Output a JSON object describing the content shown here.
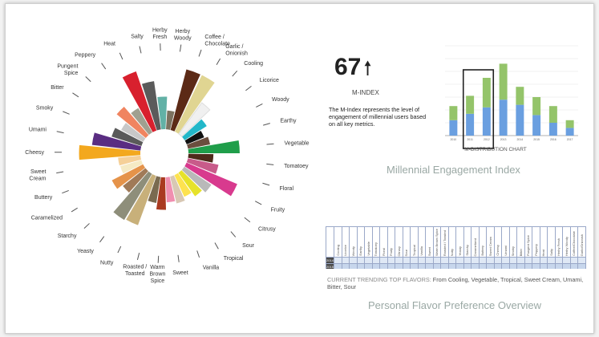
{
  "flavor_wheel": {
    "labels": [
      "Heat",
      "Salty",
      "Herby Fresh",
      "Herby Woody",
      "Coffee / Chocolate",
      "Garlic / Onionish",
      "Cooling",
      "Licorice",
      "Woody",
      "Earthy",
      "Vegetable",
      "Tomatoey",
      "Floral",
      "Fruity",
      "Citrusy",
      "Sour",
      "Tropical",
      "Vanilla",
      "Sweet",
      "Warm Brown Spice",
      "Roasted / Toasted",
      "Nutty",
      "Yeasty",
      "Starchy",
      "Caramelized",
      "Buttery",
      "Sweet Cream",
      "Cheesy",
      "Umami",
      "Smoky",
      "Bitter",
      "Pungent Spice",
      "Peppery"
    ],
    "values": [
      1.0,
      0.78,
      0.52,
      0.3,
      1.0,
      1.0,
      0.62,
      0.42,
      0.3,
      0.36,
      0.82,
      0.4,
      0.5,
      0.88,
      0.52,
      0.46,
      0.38,
      0.44,
      0.4,
      0.52,
      0.42,
      0.84,
      0.86,
      0.46,
      0.56,
      0.35,
      0.36,
      0.98,
      0.78,
      0.5,
      0.4,
      0.6,
      0.45
    ],
    "colors": [
      "#d8202e",
      "#5b5b5b",
      "#62b1a6",
      "#7c7260",
      "#5c2a16",
      "#e0d592",
      "#f0f0f0",
      "#22b7c9",
      "#111111",
      "#6b4e3e",
      "#1f9e4a",
      "#4e2a1a",
      "#c85b8a",
      "#d83a8e",
      "#b9b9b9",
      "#e6e22a",
      "#fde24f",
      "#d8c8b4",
      "#f08fb0",
      "#aa3a20",
      "#7a6a50",
      "#c8b07a",
      "#8e8e7a",
      "#a07a58",
      "#e5934a",
      "#f5eac4",
      "#f5d098",
      "#f3a81e",
      "#5a2d82",
      "#5a5a5a",
      "#c8c8c8",
      "#f08460",
      "#a0a090"
    ]
  },
  "m_index": {
    "value": "67",
    "arrow": "🠕",
    "label": "M-INDEX",
    "description": "The M-Index represents the level of engagement of millennial users based on all key metrics."
  },
  "titles": {
    "engagement": "Millennial Engagement Index",
    "flavor_overview": "Personal Flavor Preference Overview"
  },
  "trending": {
    "label": "CURRENT TRENDING TOP FLAVORS:",
    "text": "From Cooling, Vegetable, Tropical, Sweet Cream, Umami, Bitter, Sour"
  },
  "heat_table": {
    "columns": [
      "Cooling",
      "Licorice",
      "Woody",
      "Earthy",
      "Vegetable",
      "Tomatoey",
      "Floral",
      "Fruity",
      "Citrusy",
      "Sour",
      "Tropical",
      "Vanilla",
      "Sweet",
      "Warm Brown Spice",
      "Roasted / Toasted",
      "Nutty",
      "Yeasty",
      "Starchy",
      "Caramelized",
      "Buttery",
      "Sweet Cream",
      "Cheesy",
      "Umami",
      "Smoky",
      "Bitter",
      "Pungent Spice",
      "Peppery",
      "Heat",
      "Salty",
      "Herby Fresh",
      "Herby Woody",
      "Coffee/Chocolate",
      "Garlic/Onionish"
    ],
    "rows": [
      {
        "year": "2014",
        "values": [
          "",
          "",
          "",
          "",
          "",
          "",
          "",
          "",
          "",
          "",
          "",
          "",
          "",
          "",
          "",
          "",
          "",
          "",
          "",
          "",
          "",
          "",
          "",
          "",
          "",
          "",
          "",
          "",
          "",
          "",
          "",
          "",
          ""
        ]
      },
      {
        "year": "2015",
        "values": [
          "",
          "",
          "",
          "",
          "",
          "",
          "",
          "",
          "",
          "",
          "",
          "",
          "",
          "",
          "",
          "",
          "",
          "",
          "",
          "",
          "",
          "",
          "",
          "",
          "",
          "",
          "",
          "",
          "",
          "",
          "",
          "",
          ""
        ]
      }
    ]
  },
  "chart_data": {
    "type": "bar",
    "title": "M-DISTRIBUTION CHART",
    "categories": [
      "2010",
      "2011",
      "2012",
      "2013",
      "2014",
      "2015",
      "2016",
      "2017"
    ],
    "series": [
      {
        "values": [
          12,
          17,
          22,
          28,
          24,
          16,
          10,
          6
        ]
      },
      {
        "values": [
          11,
          14,
          23,
          28,
          14,
          14,
          13,
          6
        ]
      }
    ],
    "highlight_index": [
      1,
      2
    ],
    "colors": [
      "#6a9fe0",
      "#94c46a"
    ],
    "ylim": [
      0,
      70
    ],
    "grid": true
  }
}
